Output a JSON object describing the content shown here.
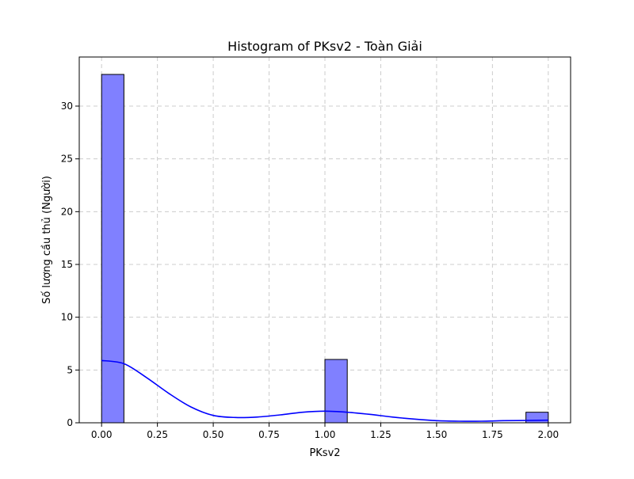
{
  "chart_data": {
    "type": "bar",
    "title": "Histogram of PKsv2 - Toàn Giải",
    "xlabel": "PKsv2",
    "ylabel": "Số lượng cầu thủ (Người)",
    "xlim": [
      -0.1,
      2.1
    ],
    "ylim": [
      0,
      34.65
    ],
    "x_ticks": [
      0.0,
      0.25,
      0.5,
      0.75,
      1.0,
      1.25,
      1.5,
      1.75,
      2.0
    ],
    "x_tick_labels": [
      "0.00",
      "0.25",
      "0.50",
      "0.75",
      "1.00",
      "1.25",
      "1.50",
      "1.75",
      "2.00"
    ],
    "y_ticks": [
      0,
      5,
      10,
      15,
      20,
      25,
      30
    ],
    "y_tick_labels": [
      "0",
      "5",
      "10",
      "15",
      "20",
      "25",
      "30"
    ],
    "grid": true,
    "bins": [
      {
        "x0": 0.0,
        "x1": 0.1,
        "count": 33
      },
      {
        "x0": 0.9,
        "x1": 1.0,
        "count": 0
      },
      {
        "x0": 1.0,
        "x1": 1.1,
        "count": 6
      },
      {
        "x0": 1.9,
        "x1": 2.0,
        "count": 1
      }
    ],
    "kde": {
      "x": [
        0.0,
        0.1,
        0.2,
        0.3,
        0.4,
        0.5,
        0.6,
        0.7,
        0.8,
        0.9,
        1.0,
        1.1,
        1.2,
        1.3,
        1.4,
        1.5,
        1.6,
        1.7,
        1.8,
        1.9,
        2.0
      ],
      "y": [
        5.9,
        5.6,
        4.3,
        2.8,
        1.5,
        0.7,
        0.5,
        0.55,
        0.75,
        1.0,
        1.1,
        1.0,
        0.8,
        0.55,
        0.35,
        0.2,
        0.15,
        0.15,
        0.2,
        0.22,
        0.25
      ]
    },
    "colors": {
      "bar_fill": "#8080ff",
      "bar_edge": "#000000",
      "kde_line": "#0000ff",
      "grid": "#cccccc"
    }
  }
}
